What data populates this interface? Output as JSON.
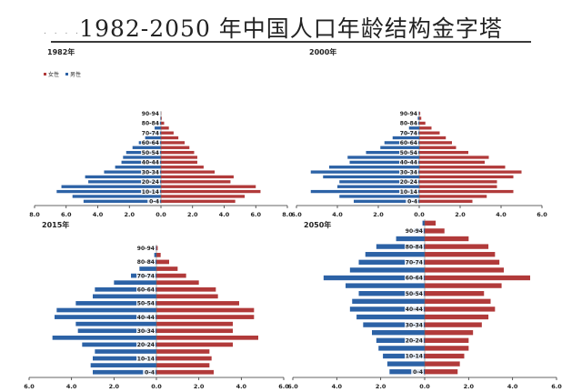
{
  "title": "1982-2050 年中国人口年龄结构金字塔",
  "title_dots": ". . . .",
  "colors": {
    "female": "#b13a3a",
    "male": "#2c62a6"
  },
  "chart_data": [
    {
      "type": "bar",
      "title": "1982年",
      "legend": [
        "女性",
        "男性"
      ],
      "legend_position": "top-left",
      "categories": [
        "0-4",
        "5-9",
        "10-14",
        "15-19",
        "20-24",
        "25-29",
        "30-34",
        "35-39",
        "40-44",
        "45-49",
        "50-54",
        "55-59",
        "60-64",
        "65-69",
        "70-74",
        "75-79",
        "80-84",
        "85-89",
        "90-94"
      ],
      "category_labels": [
        "0-4",
        "",
        "10-14",
        "",
        "20-24",
        "",
        "30-34",
        "",
        "40-44",
        "",
        "50-54",
        "",
        "60-64",
        "",
        "70-74",
        "",
        "80-84",
        "",
        "90-94"
      ],
      "series": [
        {
          "name": "女性",
          "values": [
            4.7,
            5.3,
            6.3,
            6.0,
            4.4,
            4.6,
            3.4,
            2.7,
            2.3,
            2.3,
            2.1,
            1.8,
            1.5,
            1.1,
            0.8,
            0.5,
            0.2,
            0.05,
            0.02
          ]
        },
        {
          "name": "男性",
          "values": [
            4.9,
            5.6,
            6.6,
            6.3,
            4.6,
            4.8,
            3.6,
            2.9,
            2.5,
            2.4,
            2.2,
            1.8,
            1.4,
            1.0,
            0.7,
            0.4,
            0.15,
            0.04,
            0.01
          ]
        }
      ],
      "xlim": [
        -8.0,
        8.0
      ],
      "x_tick_labels": [
        "8.0",
        "6.0",
        "4.0",
        "2.0",
        "0.0",
        "2.0",
        "4.0",
        "6.0",
        "8.0"
      ]
    },
    {
      "type": "bar",
      "title": "2000年",
      "categories": [
        "0-4",
        "5-9",
        "10-14",
        "15-19",
        "20-24",
        "25-29",
        "30-34",
        "35-39",
        "40-44",
        "45-49",
        "50-54",
        "55-59",
        "60-64",
        "65-69",
        "70-74",
        "75-79",
        "80-84",
        "85-89",
        "90-94"
      ],
      "category_labels": [
        "0-4",
        "",
        "10-14",
        "",
        "20-24",
        "",
        "30-34",
        "",
        "40-44",
        "",
        "50-54",
        "",
        "60-64",
        "",
        "70-74",
        "",
        "80-84",
        "",
        "90-94"
      ],
      "series": [
        {
          "name": "女性",
          "values": [
            2.6,
            3.3,
            4.6,
            3.8,
            3.8,
            4.6,
            5.0,
            4.2,
            3.2,
            3.4,
            2.4,
            1.8,
            1.6,
            1.3,
            1.0,
            0.6,
            0.3,
            0.1,
            0.05
          ]
        },
        {
          "name": "男性",
          "values": [
            3.2,
            3.9,
            5.3,
            4.0,
            3.9,
            4.7,
            5.3,
            4.4,
            3.4,
            3.5,
            2.6,
            1.9,
            1.7,
            1.3,
            0.9,
            0.5,
            0.2,
            0.07,
            0.03
          ]
        }
      ],
      "xlim": [
        -6.0,
        6.0
      ],
      "x_tick_labels": [
        "6.0",
        "4.0",
        "2.0",
        "0.0",
        "2.0",
        "4.0",
        "6.0"
      ]
    },
    {
      "type": "bar",
      "title": "2015年",
      "categories": [
        "0-4",
        "5-9",
        "10-14",
        "15-19",
        "20-24",
        "25-29",
        "30-34",
        "35-39",
        "40-44",
        "45-49",
        "50-54",
        "55-59",
        "60-64",
        "65-69",
        "70-74",
        "75-79",
        "80-84",
        "85-89",
        "90-94"
      ],
      "category_labels": [
        "0-4",
        "",
        "10-14",
        "",
        "20-24",
        "",
        "30-34",
        "",
        "40-44",
        "",
        "50-54",
        "",
        "60-64",
        "",
        "70-74",
        "",
        "80-84",
        "",
        "90-94"
      ],
      "series": [
        {
          "name": "女性",
          "values": [
            2.7,
            2.5,
            2.6,
            2.5,
            3.6,
            4.8,
            3.6,
            3.6,
            4.6,
            4.6,
            3.9,
            2.9,
            2.8,
            2.0,
            1.4,
            1.0,
            0.6,
            0.2,
            0.06
          ]
        },
        {
          "name": "男性",
          "values": [
            3.0,
            3.1,
            3.0,
            2.9,
            3.5,
            4.9,
            3.7,
            3.8,
            4.8,
            4.7,
            3.8,
            3.0,
            2.9,
            2.0,
            1.2,
            0.8,
            0.4,
            0.1,
            0.03
          ]
        }
      ],
      "xlim": [
        -6.0,
        6.0
      ],
      "x_tick_labels": [
        "6.0",
        "4.0",
        "2.0",
        "0.0",
        "2.0",
        "4.0",
        "6.0"
      ]
    },
    {
      "type": "bar",
      "title": "2050年",
      "categories": [
        "0-4",
        "5-9",
        "10-14",
        "15-19",
        "20-24",
        "25-29",
        "30-34",
        "35-39",
        "40-44",
        "45-49",
        "50-54",
        "55-59",
        "60-64",
        "65-69",
        "70-74",
        "75-79",
        "80-84",
        "85-89",
        "90-94",
        "95-99"
      ],
      "category_labels": [
        "0-4",
        "",
        "10-14",
        "",
        "20-24",
        "",
        "30-34",
        "",
        "40-44",
        "",
        "50-54",
        "",
        "60-64",
        "",
        "70-74",
        "",
        "80-84",
        "",
        "90-94",
        ""
      ],
      "series": [
        {
          "name": "女性",
          "values": [
            1.5,
            1.6,
            1.8,
            2.0,
            2.0,
            2.2,
            2.6,
            2.9,
            3.2,
            3.0,
            2.7,
            3.5,
            4.8,
            3.6,
            3.4,
            3.2,
            2.9,
            2.0,
            0.9,
            0.5
          ]
        },
        {
          "name": "男性",
          "values": [
            1.6,
            1.7,
            1.9,
            2.1,
            2.2,
            2.4,
            2.8,
            3.1,
            3.4,
            3.3,
            3.0,
            3.6,
            4.6,
            3.4,
            3.0,
            2.7,
            2.2,
            1.3,
            0.5,
            0.1
          ]
        }
      ],
      "xlim": [
        -6.0,
        6.0
      ],
      "x_tick_labels": [
        "6.0",
        "4.0",
        "2.0",
        "0.0",
        "2.0",
        "4.0",
        "6.0"
      ]
    }
  ]
}
